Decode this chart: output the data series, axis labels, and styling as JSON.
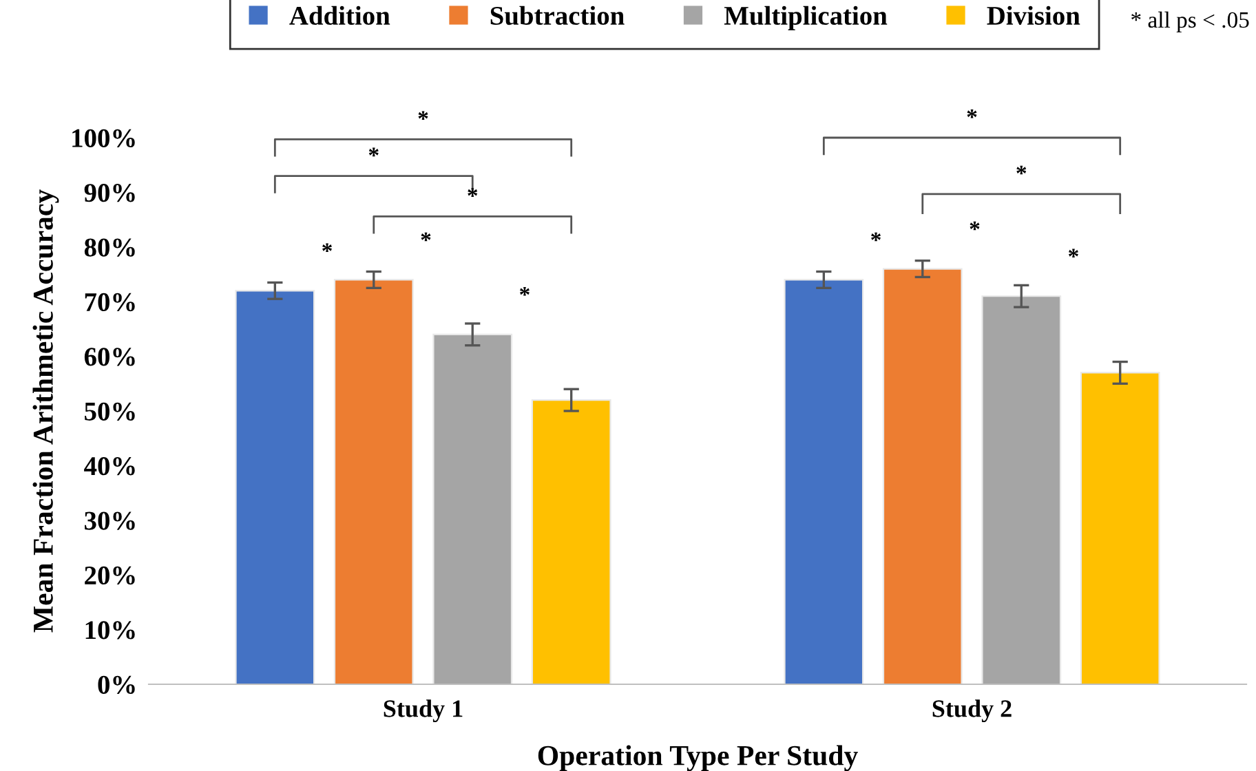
{
  "chart_data": {
    "type": "bar",
    "xlabel": "Operation Type Per Study",
    "ylabel": "Mean Fraction Arithmetic Accuracy",
    "categories": [
      "Study 1",
      "Study 2"
    ],
    "series": [
      {
        "name": "Addition",
        "color": "#4472c4",
        "values": [
          72,
          74
        ],
        "errors": [
          1.5,
          1.5
        ]
      },
      {
        "name": "Subtraction",
        "color": "#ed7d31",
        "values": [
          74,
          76
        ],
        "errors": [
          1.5,
          1.5
        ]
      },
      {
        "name": "Multiplication",
        "color": "#a5a5a5",
        "values": [
          64,
          71
        ],
        "errors": [
          2,
          2
        ]
      },
      {
        "name": "Division",
        "color": "#ffc000",
        "values": [
          52,
          57
        ],
        "errors": [
          2,
          2
        ]
      }
    ],
    "ylim": [
      0,
      100
    ],
    "yticks": [
      {
        "value": 0,
        "label": "0%"
      },
      {
        "value": 10,
        "label": "10%"
      },
      {
        "value": 20,
        "label": "20%"
      },
      {
        "value": 30,
        "label": "30%"
      },
      {
        "value": 40,
        "label": "40%"
      },
      {
        "value": 50,
        "label": "50%"
      },
      {
        "value": 60,
        "label": "60%"
      },
      {
        "value": 70,
        "label": "70%"
      },
      {
        "value": 80,
        "label": "80%"
      },
      {
        "value": 90,
        "label": "90%"
      },
      {
        "value": 100,
        "label": "100%"
      }
    ],
    "grid": false,
    "legend": "top",
    "annotations": [
      "*",
      "*",
      "*",
      "*",
      "*",
      "*",
      "*",
      "*",
      "*",
      "*",
      "*",
      "* all ps < .05"
    ]
  }
}
